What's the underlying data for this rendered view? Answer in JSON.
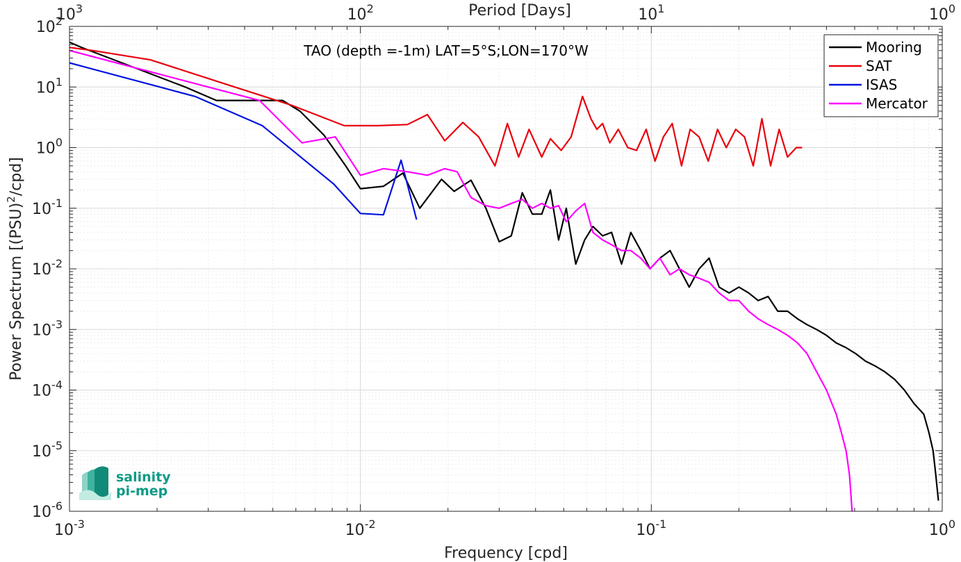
{
  "chart_data": {
    "type": "line",
    "title": "TAO (depth =-1m) LAT=5°S;LON=170°W",
    "xlabel": "Frequency [cpd]",
    "ylabel": "Power Spectrum [(PSU)^2/cpd]",
    "top_xlabel": "Period [Days]",
    "xscale": "log",
    "yscale": "log",
    "xlim": [
      0.001,
      1
    ],
    "ylim": [
      1e-06,
      100
    ],
    "grid": true,
    "legend_position": "top-right",
    "x_ticks": [
      {
        "v": 0.001,
        "m": "10",
        "e": "-3"
      },
      {
        "v": 0.01,
        "m": "10",
        "e": "-2"
      },
      {
        "v": 0.1,
        "m": "10",
        "e": "-1"
      },
      {
        "v": 1,
        "m": "10",
        "e": "0"
      }
    ],
    "y_ticks": [
      {
        "v": 1e-06,
        "m": "10",
        "e": "-6"
      },
      {
        "v": 1e-05,
        "m": "10",
        "e": "-5"
      },
      {
        "v": 0.0001,
        "m": "10",
        "e": "-4"
      },
      {
        "v": 0.001,
        "m": "10",
        "e": "-3"
      },
      {
        "v": 0.01,
        "m": "10",
        "e": "-2"
      },
      {
        "v": 0.1,
        "m": "10",
        "e": "-1"
      },
      {
        "v": 1,
        "m": "10",
        "e": "0"
      },
      {
        "v": 10,
        "m": "10",
        "e": "1"
      },
      {
        "v": 100,
        "m": "10",
        "e": "2"
      }
    ],
    "top_ticks": [
      {
        "v": 0.001,
        "m": "10",
        "e": "3"
      },
      {
        "v": 0.01,
        "m": "10",
        "e": "2"
      },
      {
        "v": 0.1,
        "m": "10",
        "e": "1"
      },
      {
        "v": 1,
        "m": "10",
        "e": "0"
      }
    ],
    "series": [
      {
        "name": "Mooring",
        "color": "#000000",
        "x": [
          0.001,
          0.0011,
          0.0025,
          0.0032,
          0.0043,
          0.0054,
          0.0062,
          0.0075,
          0.0089,
          0.01,
          0.012,
          0.014,
          0.016,
          0.019,
          0.021,
          0.024,
          0.027,
          0.03,
          0.033,
          0.036,
          0.039,
          0.042,
          0.045,
          0.048,
          0.051,
          0.055,
          0.059,
          0.063,
          0.068,
          0.073,
          0.079,
          0.085,
          0.092,
          0.099,
          0.107,
          0.116,
          0.125,
          0.135,
          0.146,
          0.158,
          0.171,
          0.185,
          0.2,
          0.216,
          0.233,
          0.252,
          0.272,
          0.294,
          0.318,
          0.343,
          0.37,
          0.4,
          0.432,
          0.467,
          0.504,
          0.545,
          0.588,
          0.635,
          0.686,
          0.741,
          0.8,
          0.864,
          0.9,
          0.93,
          0.95,
          0.97
        ],
        "y": [
          55.0,
          45.0,
          10.0,
          6.0,
          6.0,
          6.0,
          4.0,
          1.6,
          0.5,
          0.21,
          0.23,
          0.38,
          0.1,
          0.3,
          0.19,
          0.29,
          0.1,
          0.028,
          0.035,
          0.18,
          0.08,
          0.08,
          0.2,
          0.03,
          0.1,
          0.012,
          0.03,
          0.05,
          0.035,
          0.04,
          0.012,
          0.04,
          0.02,
          0.01,
          0.015,
          0.02,
          0.01,
          0.005,
          0.01,
          0.015,
          0.005,
          0.004,
          0.005,
          0.004,
          0.003,
          0.0035,
          0.002,
          0.002,
          0.0015,
          0.0012,
          0.001,
          0.0008,
          0.0006,
          0.0005,
          0.0004,
          0.0003,
          0.00025,
          0.0002,
          0.00015,
          0.0001,
          6e-05,
          4e-05,
          2e-05,
          1e-05,
          4e-06,
          1.5e-06
        ]
      },
      {
        "name": "SAT",
        "color": "#e8000b",
        "x": [
          0.001,
          0.0012,
          0.0019,
          0.0037,
          0.0058,
          0.0088,
          0.0115,
          0.0145,
          0.017,
          0.0195,
          0.0225,
          0.0255,
          0.029,
          0.032,
          0.035,
          0.038,
          0.042,
          0.045,
          0.049,
          0.053,
          0.058,
          0.062,
          0.065,
          0.068,
          0.072,
          0.077,
          0.083,
          0.089,
          0.096,
          0.103,
          0.11,
          0.118,
          0.127,
          0.136,
          0.146,
          0.157,
          0.169,
          0.181,
          0.195,
          0.209,
          0.224,
          0.24,
          0.257,
          0.275,
          0.294,
          0.315,
          0.33
        ],
        "y": [
          45.0,
          40.0,
          28.0,
          10.0,
          5.0,
          2.3,
          2.3,
          2.4,
          3.5,
          1.3,
          2.6,
          1.5,
          0.5,
          2.5,
          0.7,
          2.0,
          0.7,
          1.4,
          0.9,
          1.5,
          7.0,
          3.0,
          2.0,
          2.5,
          1.2,
          2.0,
          1.0,
          0.9,
          2.0,
          0.6,
          1.5,
          2.5,
          0.5,
          2.0,
          1.5,
          0.6,
          2.0,
          1.0,
          2.0,
          1.5,
          0.5,
          3.0,
          0.5,
          2.0,
          0.7,
          1.0,
          1.0
        ]
      },
      {
        "name": "ISAS",
        "color": "#0013e0",
        "x": [
          0.001,
          0.0027,
          0.0046,
          0.0081,
          0.01,
          0.012,
          0.0138,
          0.0156
        ],
        "y": [
          25.0,
          7.0,
          2.3,
          0.25,
          0.082,
          0.078,
          0.62,
          0.065
        ]
      },
      {
        "name": "Mercator",
        "color": "#ff00ff",
        "x": [
          0.001,
          0.003,
          0.0045,
          0.0063,
          0.0082,
          0.01,
          0.012,
          0.0145,
          0.017,
          0.0195,
          0.0215,
          0.024,
          0.027,
          0.03,
          0.033,
          0.036,
          0.039,
          0.042,
          0.045,
          0.048,
          0.051,
          0.055,
          0.059,
          0.063,
          0.068,
          0.073,
          0.079,
          0.085,
          0.092,
          0.099,
          0.107,
          0.116,
          0.125,
          0.135,
          0.146,
          0.158,
          0.171,
          0.185,
          0.2,
          0.216,
          0.233,
          0.252,
          0.272,
          0.294,
          0.318,
          0.343,
          0.37,
          0.4,
          0.432,
          0.45,
          0.467,
          0.48,
          0.49
        ],
        "y": [
          40.0,
          10.0,
          6.0,
          1.2,
          1.5,
          0.35,
          0.45,
          0.4,
          0.35,
          0.45,
          0.4,
          0.15,
          0.11,
          0.1,
          0.12,
          0.14,
          0.1,
          0.12,
          0.1,
          0.11,
          0.06,
          0.09,
          0.12,
          0.04,
          0.03,
          0.025,
          0.02,
          0.02,
          0.015,
          0.01,
          0.015,
          0.008,
          0.01,
          0.008,
          0.007,
          0.006,
          0.004,
          0.003,
          0.003,
          0.002,
          0.0015,
          0.0012,
          0.001,
          0.0008,
          0.0006,
          0.0004,
          0.0002,
          0.0001,
          4e-05,
          2e-05,
          1e-05,
          4e-06,
          1e-06
        ]
      }
    ]
  },
  "logo": {
    "line1": "salinity",
    "line2": "pi-mep"
  }
}
